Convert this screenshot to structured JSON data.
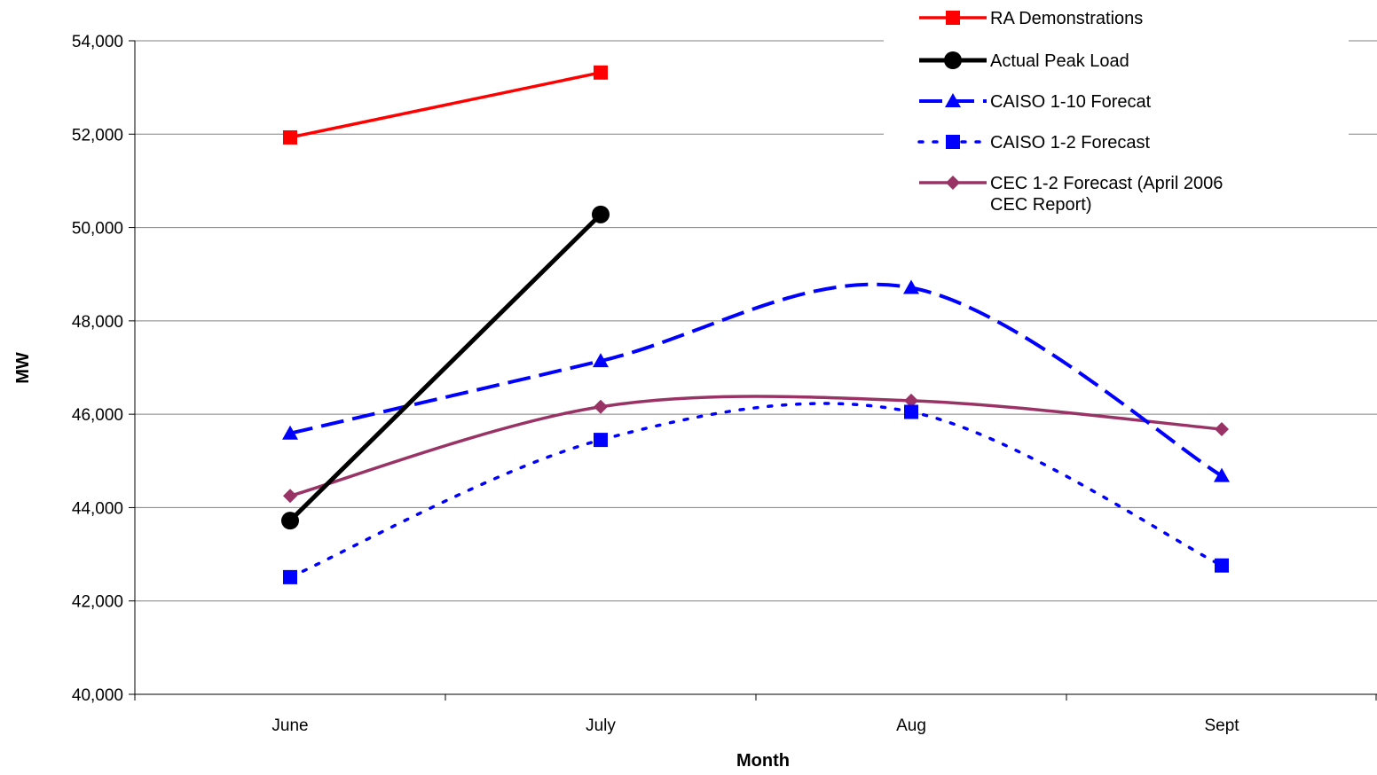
{
  "chart_data": {
    "type": "line",
    "xlabel": "Month",
    "ylabel": "MW",
    "categories": [
      "June",
      "July",
      "Aug",
      "Sept"
    ],
    "ylim": [
      40000,
      54000
    ],
    "yticks": [
      40000,
      42000,
      44000,
      46000,
      48000,
      50000,
      52000,
      54000
    ],
    "ytick_labels": [
      "40,000",
      "42,000",
      "44,000",
      "46,000",
      "48,000",
      "50,000",
      "52,000",
      "54,000"
    ],
    "grid": "horizontal",
    "legend_position": "top-right",
    "series": [
      {
        "name": "RA Demonstrations",
        "values": [
          51930,
          53320,
          null,
          null
        ],
        "color": "#ff0000",
        "marker": "square",
        "line": "solid",
        "smooth": false
      },
      {
        "name": "Actual Peak Load",
        "values": [
          43720,
          50280,
          null,
          null
        ],
        "color": "#000000",
        "marker": "circle",
        "line": "solid",
        "smooth": false
      },
      {
        "name": "CAISO 1-10 Forecat",
        "values": [
          45590,
          47140,
          48710,
          44680
        ],
        "color": "#0000ff",
        "marker": "triangle",
        "line": "longdash",
        "smooth": true
      },
      {
        "name": "CAISO 1-2 Forecast",
        "values": [
          42510,
          45450,
          46050,
          42760
        ],
        "color": "#0000ff",
        "marker": "square",
        "line": "dotted",
        "smooth": true
      },
      {
        "name": "CEC 1-2 Forecast (April 2006 CEC Report)",
        "values": [
          44250,
          46160,
          46290,
          45680
        ],
        "color": "#993366",
        "marker": "diamond",
        "line": "solid",
        "smooth": true
      }
    ]
  }
}
